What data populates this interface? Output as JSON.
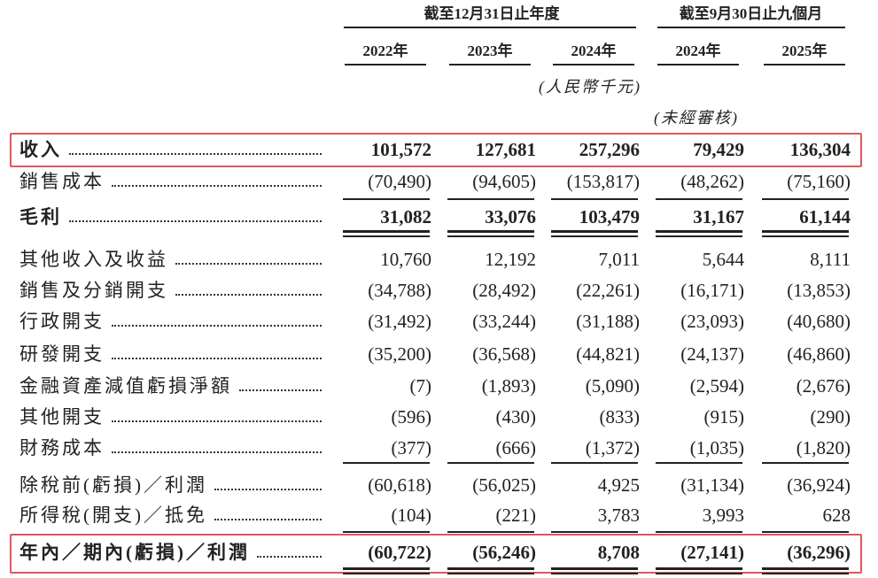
{
  "header": {
    "group_headers": [
      "截至12月31日止年度",
      "截至9月30日止九個月"
    ],
    "years": [
      "2022年",
      "2023年",
      "2024年",
      "2024年",
      "2025年"
    ],
    "unit": "(人民幣千元)",
    "unaudited": "(未經審核)"
  },
  "table": {
    "rows": [
      {
        "label": "收入",
        "values": [
          "101,572",
          "127,681",
          "257,296",
          "79,429",
          "136,304"
        ]
      },
      {
        "label": "銷售成本",
        "values": [
          "(70,490)",
          "(94,605)",
          "(153,817)",
          "(48,262)",
          "(75,160)"
        ]
      },
      {
        "label": "毛利",
        "values": [
          "31,082",
          "33,076",
          "103,479",
          "31,167",
          "61,144"
        ]
      },
      {
        "label": "其他收入及收益",
        "values": [
          "10,760",
          "12,192",
          "7,011",
          "5,644",
          "8,111"
        ]
      },
      {
        "label": "銷售及分銷開支",
        "values": [
          "(34,788)",
          "(28,492)",
          "(22,261)",
          "(16,171)",
          "(13,853)"
        ]
      },
      {
        "label": "行政開支",
        "values": [
          "(31,492)",
          "(33,244)",
          "(31,188)",
          "(23,093)",
          "(40,680)"
        ]
      },
      {
        "label": "研發開支",
        "values": [
          "(35,200)",
          "(36,568)",
          "(44,821)",
          "(24,137)",
          "(46,860)"
        ]
      },
      {
        "label": "金融資產減值虧損淨額",
        "values": [
          "(7)",
          "(1,893)",
          "(5,090)",
          "(2,594)",
          "(2,676)"
        ]
      },
      {
        "label": "其他開支",
        "values": [
          "(596)",
          "(430)",
          "(833)",
          "(915)",
          "(290)"
        ]
      },
      {
        "label": "財務成本",
        "values": [
          "(377)",
          "(666)",
          "(1,372)",
          "(1,035)",
          "(1,820)"
        ]
      },
      {
        "label": "除稅前(虧損)／利潤",
        "values": [
          "(60,618)",
          "(56,025)",
          "4,925",
          "(31,134)",
          "(36,924)"
        ]
      },
      {
        "label": "所得稅(開支)／抵免",
        "values": [
          "(104)",
          "(221)",
          "3,783",
          "3,993",
          "628"
        ]
      },
      {
        "label": "年內／期內(虧損)／利潤",
        "values": [
          "(60,722)",
          "(56,246)",
          "8,708",
          "(27,141)",
          "(36,296)"
        ]
      }
    ]
  }
}
